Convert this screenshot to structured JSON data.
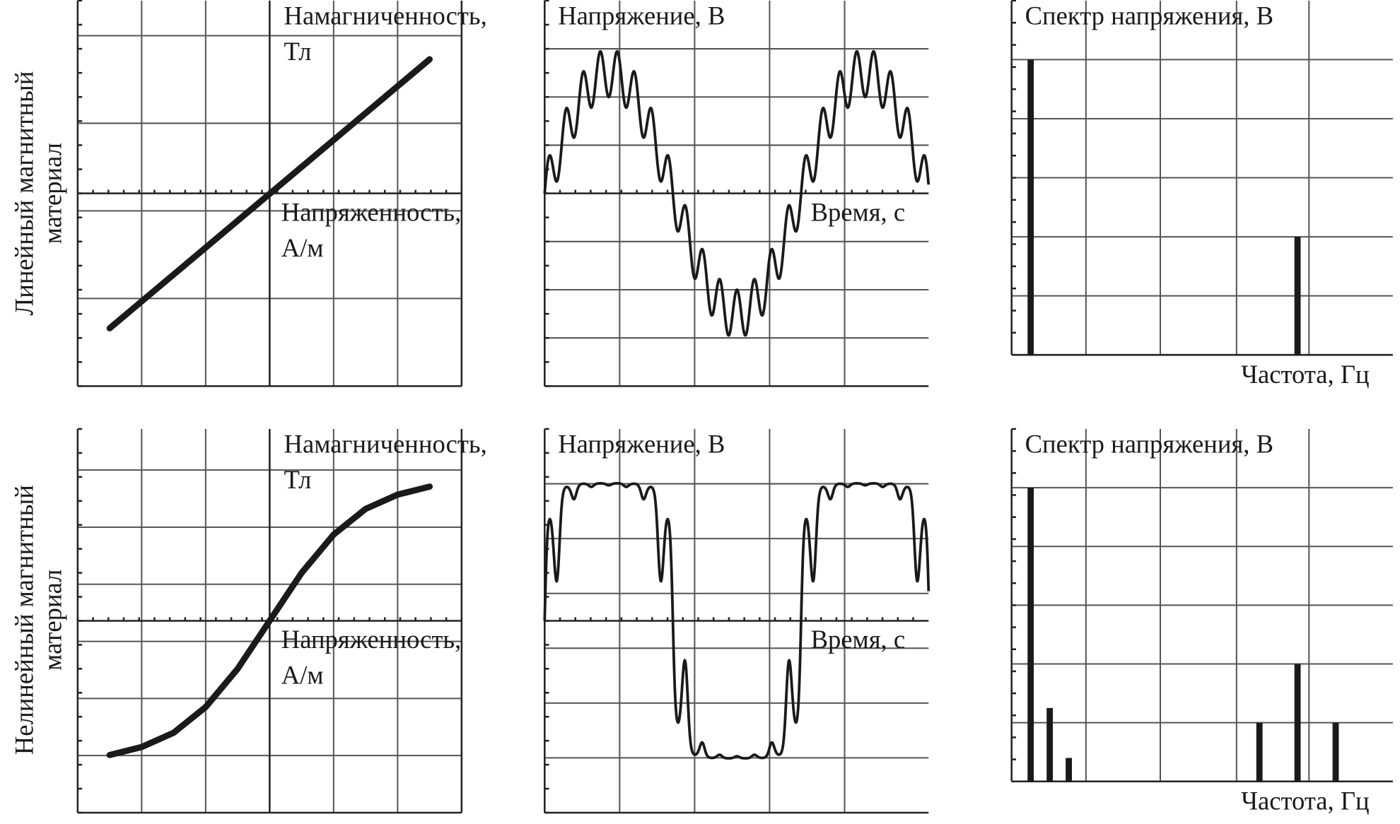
{
  "row_labels": [
    [
      "Линейный магнитный",
      "материал"
    ],
    [
      "Нелинейный магнитный",
      "материал"
    ]
  ],
  "chart_data": [
    {
      "type": "line",
      "y_label": [
        "Намагниченность,",
        "Тл"
      ],
      "x_label": [
        "Напряженность,",
        "А/м"
      ],
      "x": [
        -2.5,
        2.5
      ],
      "values": [
        -1.54,
        1.53
      ],
      "color": "#1a1a1a",
      "xlim": [
        -3,
        3
      ],
      "ylim": [
        -2.2,
        2.2
      ],
      "xticks": [
        -2,
        -1,
        0,
        1,
        2
      ],
      "yticks": [
        -1.2,
        -0.2,
        0.8,
        1.8
      ]
    },
    {
      "type": "waveform",
      "y_label": [
        "Напряжение, В"
      ],
      "x_label": [
        "Время, с"
      ],
      "waveform": {
        "amplitude": 2.5,
        "period": 3.42,
        "ripple": 0.2,
        "ripple_order": 15,
        "saturation": 0
      },
      "color": "#1a1a1a",
      "xlim": [
        0,
        5.12
      ],
      "ylim": [
        -4,
        4
      ],
      "xticks": [
        1,
        2,
        3,
        4
      ],
      "yticks": [
        -3,
        -2,
        -1,
        1,
        2,
        3
      ]
    },
    {
      "type": "spectrum",
      "y_label": [
        "Спектр напряжения, В"
      ],
      "x_label": [
        "Частота, Гц"
      ],
      "x": [
        1,
        15
      ],
      "values": [
        5,
        2
      ],
      "color": "#1a1a1a",
      "xlim": [
        0,
        20
      ],
      "ylim": [
        0,
        6
      ],
      "xticks": [
        3.9,
        7.8,
        11.8,
        15.6
      ],
      "yticks": [
        1,
        2,
        3,
        4,
        5
      ]
    },
    {
      "type": "line",
      "y_label": [
        "Намагниченность,",
        "Тл"
      ],
      "x_label": [
        "Напряженность,",
        "А/м"
      ],
      "x": [
        -2.5,
        -2,
        -1.5,
        -1,
        -0.5,
        0,
        0.5,
        1,
        1.5,
        2,
        2.5
      ],
      "values": [
        -2.35,
        -2.21,
        -1.96,
        -1.51,
        -0.84,
        0,
        0.84,
        1.51,
        1.96,
        2.21,
        2.35
      ],
      "color": "#1a1a1a",
      "xlim": [
        -3,
        3
      ],
      "ylim": [
        -3.36,
        3.36
      ],
      "xticks": [
        -2,
        -1,
        0,
        1,
        2
      ],
      "yticks": [
        -2.36,
        -1.36,
        -0.36,
        0.64,
        1.64,
        2.64
      ]
    },
    {
      "type": "waveform",
      "y_label": [
        "Напряжение, В"
      ],
      "x_label": [
        "Время, с"
      ],
      "waveform": {
        "amplitude": 2.5,
        "period": 3.42,
        "ripple": 0.2,
        "ripple_order": 15,
        "saturation": 3
      },
      "color": "#1a1a1a",
      "xlim": [
        0,
        5.12
      ],
      "ylim": [
        -3.5,
        3.5
      ],
      "xticks": [
        1,
        2,
        3,
        4
      ],
      "yticks": [
        -2.5,
        -1.5,
        -0.5,
        0.5,
        1.5,
        2.5
      ]
    },
    {
      "type": "spectrum",
      "y_label": [
        "Спектр напряжения, В"
      ],
      "x_label": [
        "Частота, Гц"
      ],
      "x": [
        1,
        2,
        3,
        13,
        15,
        17
      ],
      "values": [
        5,
        1.25,
        0.4,
        1,
        2,
        1
      ],
      "color": "#1a1a1a",
      "xlim": [
        0,
        20
      ],
      "ylim": [
        0,
        6
      ],
      "xticks": [
        3.9,
        7.8,
        11.8,
        15.6
      ],
      "yticks": [
        1,
        2,
        3,
        4,
        5
      ]
    }
  ]
}
